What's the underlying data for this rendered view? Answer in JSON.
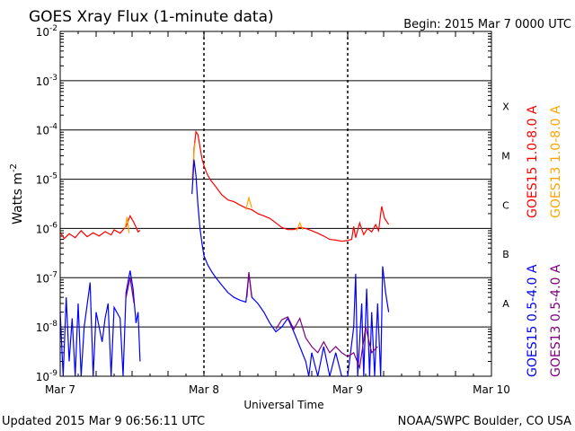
{
  "header": {
    "title": "GOES Xray Flux (1-minute data)",
    "begin": "Begin:  2015 Mar 7 0000 UTC"
  },
  "footer": {
    "updated": "Updated 2015 Mar  9 06:56:11 UTC",
    "credit": "NOAA/SWPC Boulder, CO USA"
  },
  "chart_data": {
    "type": "line",
    "title": "GOES Xray Flux (1-minute data)",
    "xlabel": "Universal Time",
    "ylabel": "Watts m",
    "ylabel_sup": "-2",
    "y_scale": "log",
    "ylim": [
      1e-09,
      0.01
    ],
    "xlim": [
      "2015-03-07 00:00",
      "2015-03-10 00:00"
    ],
    "x_ticks": [
      {
        "value": "2015-03-07 00:00",
        "label": "Mar 7"
      },
      {
        "value": "2015-03-08 00:00",
        "label": "Mar 8"
      },
      {
        "value": "2015-03-09 00:00",
        "label": "Mar 9"
      },
      {
        "value": "2015-03-10 00:00",
        "label": "Mar 10"
      }
    ],
    "y_ticks": [
      {
        "value": 1e-09,
        "base": "10",
        "exp": "-9"
      },
      {
        "value": 1e-08,
        "base": "10",
        "exp": "-8"
      },
      {
        "value": 1e-07,
        "base": "10",
        "exp": "-7"
      },
      {
        "value": 1e-06,
        "base": "10",
        "exp": "-6"
      },
      {
        "value": 1e-05,
        "base": "10",
        "exp": "-5"
      },
      {
        "value": 0.0001,
        "base": "10",
        "exp": "-4"
      },
      {
        "value": 0.001,
        "base": "10",
        "exp": "-3"
      },
      {
        "value": 0.01,
        "base": "10",
        "exp": "-2"
      }
    ],
    "flare_classes": [
      {
        "label": "A",
        "value": 3e-08
      },
      {
        "label": "B",
        "value": 3e-07
      },
      {
        "label": "C",
        "value": 3e-06
      },
      {
        "label": "M",
        "value": 3e-05
      },
      {
        "label": "X",
        "value": 0.0003
      }
    ],
    "grid": {
      "horizontal": true,
      "day_separators": "dashed"
    },
    "series": [
      {
        "name": "GOES15 1.0-8.0 A",
        "color": "#ff0000",
        "points": [
          [
            "2015-03-07 00:00",
            8.5e-07
          ],
          [
            "2015-03-07 00:40",
            6.2e-07
          ],
          [
            "2015-03-07 01:30",
            7.8e-07
          ],
          [
            "2015-03-07 02:30",
            6.5e-07
          ],
          [
            "2015-03-07 03:30",
            9e-07
          ],
          [
            "2015-03-07 04:30",
            6.8e-07
          ],
          [
            "2015-03-07 05:30",
            8.2e-07
          ],
          [
            "2015-03-07 06:30",
            7e-07
          ],
          [
            "2015-03-07 07:30",
            8.6e-07
          ],
          [
            "2015-03-07 08:30",
            7.4e-07
          ],
          [
            "2015-03-07 09:00",
            9.4e-07
          ],
          [
            "2015-03-07 10:00",
            8e-07
          ],
          [
            "2015-03-07 11:00",
            1.1e-06
          ],
          [
            "2015-03-07 11:40",
            1.8e-06
          ],
          [
            "2015-03-07 12:20",
            1.3e-06
          ],
          [
            "2015-03-07 13:00",
            8.5e-07
          ],
          [
            "2015-03-07 13:20",
            9.2e-07
          ],
          [
            "2015-03-07 22:10",
            1e-05
          ],
          [
            "2015-03-07 22:20",
            4e-05
          ],
          [
            "2015-03-07 22:40",
            9.2e-05
          ],
          [
            "2015-03-07 23:00",
            8e-05
          ],
          [
            "2015-03-07 23:20",
            4.5e-05
          ],
          [
            "2015-03-07 23:40",
            2.6e-05
          ],
          [
            "2015-03-08 00:00",
            1.9e-05
          ],
          [
            "2015-03-08 00:30",
            1.3e-05
          ],
          [
            "2015-03-08 01:00",
            1e-05
          ],
          [
            "2015-03-08 02:00",
            7e-06
          ],
          [
            "2015-03-08 03:00",
            4.8e-06
          ],
          [
            "2015-03-08 04:00",
            3.8e-06
          ],
          [
            "2015-03-08 05:00",
            3.5e-06
          ],
          [
            "2015-03-08 06:00",
            3e-06
          ],
          [
            "2015-03-08 07:00",
            2.6e-06
          ],
          [
            "2015-03-08 08:00",
            2.4e-06
          ],
          [
            "2015-03-08 09:00",
            2e-06
          ],
          [
            "2015-03-08 10:00",
            1.8e-06
          ],
          [
            "2015-03-08 11:00",
            1.6e-06
          ],
          [
            "2015-03-08 12:00",
            1.3e-06
          ],
          [
            "2015-03-08 13:00",
            1.05e-06
          ],
          [
            "2015-03-08 14:00",
            9.5e-07
          ],
          [
            "2015-03-08 15:00",
            9.5e-07
          ],
          [
            "2015-03-08 16:00",
            1.05e-06
          ],
          [
            "2015-03-08 17:00",
            1e-06
          ],
          [
            "2015-03-08 18:00",
            9e-07
          ],
          [
            "2015-03-08 19:00",
            8e-07
          ],
          [
            "2015-03-08 20:00",
            7e-07
          ],
          [
            "2015-03-08 21:00",
            6e-07
          ],
          [
            "2015-03-08 22:00",
            5.8e-07
          ],
          [
            "2015-03-08 23:00",
            5.5e-07
          ],
          [
            "2015-03-09 00:00",
            5.7e-07
          ],
          [
            "2015-03-09 00:40",
            6e-07
          ],
          [
            "2015-03-09 01:00",
            1.1e-06
          ],
          [
            "2015-03-09 01:20",
            6.5e-07
          ],
          [
            "2015-03-09 02:00",
            1.3e-06
          ],
          [
            "2015-03-09 02:40",
            7.5e-07
          ],
          [
            "2015-03-09 03:20",
            1e-06
          ],
          [
            "2015-03-09 04:00",
            8.5e-07
          ],
          [
            "2015-03-09 04:40",
            1.2e-06
          ],
          [
            "2015-03-09 05:10",
            9e-07
          ],
          [
            "2015-03-09 05:40",
            2.8e-06
          ],
          [
            "2015-03-09 06:10",
            1.6e-06
          ],
          [
            "2015-03-09 06:50",
            1.2e-06
          ]
        ]
      },
      {
        "name": "GOES13 1.0-8.0 A",
        "color": "#ffa500",
        "points": [
          [
            "2015-03-07 10:50",
            1e-06
          ],
          [
            "2015-03-07 11:10",
            1.7e-06
          ],
          [
            "2015-03-07 11:30",
            8e-07
          ],
          [
            "2015-03-07 22:00",
            1e-05
          ],
          [
            "2015-03-07 22:15",
            2.5e-05
          ],
          [
            "2015-03-07 22:30",
            5.5e-05
          ],
          [
            "2015-03-08 07:00",
            2.4e-06
          ],
          [
            "2015-03-08 07:30",
            4.2e-06
          ],
          [
            "2015-03-08 08:00",
            2.6e-06
          ],
          [
            "2015-03-08 15:30",
            9e-07
          ],
          [
            "2015-03-08 16:00",
            1.3e-06
          ],
          [
            "2015-03-08 16:30",
            9.5e-07
          ]
        ]
      },
      {
        "name": "GOES15 0.5-4.0 A",
        "color": "#0000ff",
        "points": [
          [
            "2015-03-07 00:00",
            2e-08
          ],
          [
            "2015-03-07 00:30",
            1e-09
          ],
          [
            "2015-03-07 01:00",
            4e-08
          ],
          [
            "2015-03-07 01:30",
            2e-09
          ],
          [
            "2015-03-07 02:00",
            1.5e-08
          ],
          [
            "2015-03-07 02:30",
            1e-09
          ],
          [
            "2015-03-07 03:00",
            3e-08
          ],
          [
            "2015-03-07 03:30",
            1e-09
          ],
          [
            "2015-03-07 04:00",
            1e-08
          ],
          [
            "2015-03-07 05:00",
            8e-08
          ],
          [
            "2015-03-07 05:30",
            1e-09
          ],
          [
            "2015-03-07 06:00",
            2e-08
          ],
          [
            "2015-03-07 07:00",
            5e-09
          ],
          [
            "2015-03-07 07:30",
            1.5e-08
          ],
          [
            "2015-03-07 08:00",
            3e-08
          ],
          [
            "2015-03-07 08:30",
            1e-09
          ],
          [
            "2015-03-07 09:00",
            2.5e-08
          ],
          [
            "2015-03-07 10:00",
            1.5e-08
          ],
          [
            "2015-03-07 10:30",
            1e-09
          ],
          [
            "2015-03-07 11:00",
            5e-08
          ],
          [
            "2015-03-07 11:40",
            1.4e-07
          ],
          [
            "2015-03-07 12:10",
            6e-08
          ],
          [
            "2015-03-07 12:40",
            1.2e-08
          ],
          [
            "2015-03-07 13:00",
            2e-08
          ],
          [
            "2015-03-07 13:20",
            2e-09
          ],
          [
            "2015-03-07 22:00",
            5e-06
          ],
          [
            "2015-03-07 22:20",
            2.5e-05
          ],
          [
            "2015-03-07 22:40",
            1.2e-05
          ],
          [
            "2015-03-07 23:00",
            3e-06
          ],
          [
            "2015-03-07 23:20",
            1e-06
          ],
          [
            "2015-03-07 23:40",
            5e-07
          ],
          [
            "2015-03-08 00:00",
            2.8e-07
          ],
          [
            "2015-03-08 00:40",
            1.8e-07
          ],
          [
            "2015-03-08 01:20",
            1.3e-07
          ],
          [
            "2015-03-08 02:00",
            1e-07
          ],
          [
            "2015-03-08 03:00",
            7e-08
          ],
          [
            "2015-03-08 04:00",
            5e-08
          ],
          [
            "2015-03-08 05:00",
            4e-08
          ],
          [
            "2015-03-08 06:00",
            3.5e-08
          ],
          [
            "2015-03-08 07:00",
            3.2e-08
          ],
          [
            "2015-03-08 07:30",
            1.2e-07
          ],
          [
            "2015-03-08 08:00",
            4e-08
          ],
          [
            "2015-03-08 09:00",
            3e-08
          ],
          [
            "2015-03-08 10:00",
            2e-08
          ],
          [
            "2015-03-08 11:00",
            1.2e-08
          ],
          [
            "2015-03-08 12:00",
            8e-09
          ],
          [
            "2015-03-08 13:00",
            1e-08
          ],
          [
            "2015-03-08 14:00",
            1.5e-08
          ],
          [
            "2015-03-08 15:00",
            8e-09
          ],
          [
            "2015-03-08 16:00",
            4e-09
          ],
          [
            "2015-03-08 17:00",
            2e-09
          ],
          [
            "2015-03-08 17:30",
            1e-09
          ],
          [
            "2015-03-08 18:00",
            3e-09
          ],
          [
            "2015-03-08 19:00",
            1e-09
          ],
          [
            "2015-03-08 20:00",
            4e-09
          ],
          [
            "2015-03-08 21:00",
            1e-09
          ],
          [
            "2015-03-08 22:00",
            3e-09
          ],
          [
            "2015-03-08 23:00",
            1e-09
          ],
          [
            "2015-03-09 00:00",
            1e-09
          ],
          [
            "2015-03-09 01:00",
            1e-08
          ],
          [
            "2015-03-09 01:20",
            1.2e-07
          ],
          [
            "2015-03-09 01:40",
            1e-09
          ],
          [
            "2015-03-09 02:20",
            3e-08
          ],
          [
            "2015-03-09 02:40",
            1e-09
          ],
          [
            "2015-03-09 03:10",
            6e-08
          ],
          [
            "2015-03-09 03:40",
            1e-09
          ],
          [
            "2015-03-09 04:00",
            2e-08
          ],
          [
            "2015-03-09 04:30",
            1e-09
          ],
          [
            "2015-03-09 05:00",
            3e-08
          ],
          [
            "2015-03-09 05:30",
            1e-09
          ],
          [
            "2015-03-09 05:50",
            1.7e-07
          ],
          [
            "2015-03-09 06:20",
            5e-08
          ],
          [
            "2015-03-09 06:50",
            2e-08
          ]
        ]
      },
      {
        "name": "GOES13 0.5-4.0 A",
        "color": "#800080",
        "points": [
          [
            "2015-03-07 11:00",
            4e-08
          ],
          [
            "2015-03-07 11:40",
            1e-07
          ],
          [
            "2015-03-07 12:20",
            3e-08
          ],
          [
            "2015-03-08 07:10",
            4e-08
          ],
          [
            "2015-03-08 07:30",
            1.3e-07
          ],
          [
            "2015-03-08 08:00",
            4e-08
          ],
          [
            "2015-03-08 12:00",
            9e-09
          ],
          [
            "2015-03-08 13:00",
            1.4e-08
          ],
          [
            "2015-03-08 14:00",
            1.6e-08
          ],
          [
            "2015-03-08 15:00",
            9e-09
          ],
          [
            "2015-03-08 16:00",
            1.5e-08
          ],
          [
            "2015-03-08 17:00",
            6e-09
          ],
          [
            "2015-03-08 18:00",
            4e-09
          ],
          [
            "2015-03-08 19:00",
            3e-09
          ],
          [
            "2015-03-08 20:00",
            5e-09
          ],
          [
            "2015-03-08 21:00",
            3e-09
          ],
          [
            "2015-03-08 22:00",
            4e-09
          ],
          [
            "2015-03-08 23:00",
            3e-09
          ],
          [
            "2015-03-09 00:00",
            2.5e-09
          ],
          [
            "2015-03-09 01:00",
            3e-09
          ],
          [
            "2015-03-09 02:00",
            1.5e-09
          ],
          [
            "2015-03-09 03:00",
            1e-08
          ],
          [
            "2015-03-09 04:00",
            3e-09
          ],
          [
            "2015-03-09 05:00",
            4e-09
          ]
        ]
      }
    ]
  }
}
